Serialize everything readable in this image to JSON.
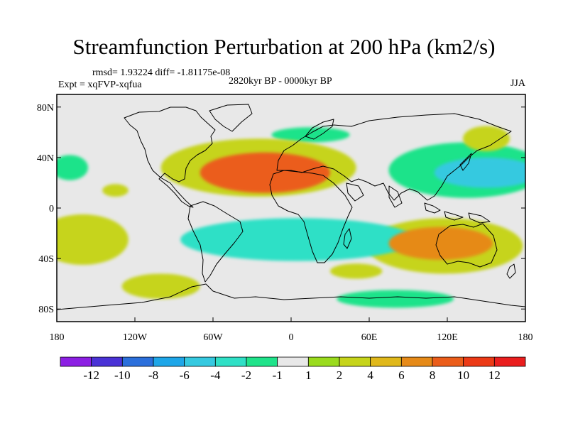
{
  "title": "Streamfunction Perturbation at 200 hPa (km2/s)",
  "stats_line": "rmsd= 1.93224 diff= -1.81175e-08",
  "period_label": "2820kyr BP - 0000kyr BP",
  "experiment_label": "Expt = xqFVP-xqfua",
  "season_label": "JJA",
  "map": {
    "lon_range": [
      -180,
      180
    ],
    "lat_range": [
      -90,
      90
    ],
    "background": "#e8e8e8",
    "lat_ticks": [
      {
        "value": 80,
        "label": "80N"
      },
      {
        "value": 40,
        "label": "40N"
      },
      {
        "value": 0,
        "label": "0"
      },
      {
        "value": -40,
        "label": "40S"
      },
      {
        "value": -80,
        "label": "80S"
      }
    ],
    "lon_ticks": [
      {
        "value": -180,
        "label": "180"
      },
      {
        "value": -120,
        "label": "120W"
      },
      {
        "value": -60,
        "label": "60W"
      },
      {
        "value": 0,
        "label": "0"
      },
      {
        "value": 60,
        "label": "60E"
      },
      {
        "value": 120,
        "label": "120E"
      },
      {
        "value": 180,
        "label": "180"
      }
    ],
    "anomalies": [
      {
        "name": "north-atlantic-high",
        "lon": -20,
        "lat": 28,
        "rx": 50,
        "ry": 16,
        "level": 8
      },
      {
        "name": "north-atlantic-high-outer",
        "lon": -25,
        "lat": 32,
        "rx": 75,
        "ry": 23,
        "level": 3
      },
      {
        "name": "north-pacific-low",
        "lon": 150,
        "lat": 28,
        "rx": 40,
        "ry": 12,
        "level": -5
      },
      {
        "name": "north-pacific-low-outer",
        "lon": 135,
        "lat": 30,
        "rx": 60,
        "ry": 22,
        "level": -2
      },
      {
        "name": "northeast-pacific-high",
        "lon": 150,
        "lat": 55,
        "rx": 18,
        "ry": 10,
        "level": 2
      },
      {
        "name": "east-pacific-low",
        "lon": -170,
        "lat": 32,
        "rx": 14,
        "ry": 10,
        "level": -2
      },
      {
        "name": "south-atlantic-low",
        "lon": 5,
        "lat": -25,
        "rx": 90,
        "ry": 17,
        "level": -4
      },
      {
        "name": "south-atlantic-low-outer",
        "lon": 0,
        "lat": -22,
        "rx": 110,
        "ry": 25,
        "level": -1
      },
      {
        "name": "australia-high",
        "lon": 115,
        "lat": -28,
        "rx": 40,
        "ry": 13,
        "level": 6
      },
      {
        "name": "australia-high-outer",
        "lon": 118,
        "lat": -30,
        "rx": 60,
        "ry": 22,
        "level": 3
      },
      {
        "name": "south-pacific-high",
        "lon": -160,
        "lat": -25,
        "rx": 35,
        "ry": 20,
        "level": 3
      },
      {
        "name": "southern-ocean-high",
        "lon": -100,
        "lat": -62,
        "rx": 30,
        "ry": 10,
        "level": 2
      },
      {
        "name": "indian-ocean-high",
        "lon": 50,
        "lat": -50,
        "rx": 20,
        "ry": 6,
        "level": 2
      },
      {
        "name": "antarctic-low",
        "lon": 80,
        "lat": -72,
        "rx": 45,
        "ry": 7,
        "level": -2
      },
      {
        "name": "arctic-low",
        "lon": 15,
        "lat": 58,
        "rx": 30,
        "ry": 6,
        "level": -2
      },
      {
        "name": "north-pacific-high-small",
        "lon": -135,
        "lat": 14,
        "rx": 10,
        "ry": 5,
        "level": 2
      }
    ]
  },
  "colorbar": {
    "colors": [
      "#8c1fe3",
      "#4a32d6",
      "#2b6fdb",
      "#1ea6e8",
      "#35c9e0",
      "#2fe0c6",
      "#1fe38a",
      "#e8e8e8",
      "#9adb1d",
      "#c6d41a",
      "#e0b81a",
      "#e68a18",
      "#eb5d1a",
      "#ec3a16",
      "#ea1e1e"
    ],
    "labels": [
      "-12",
      "-10",
      "-8",
      "-6",
      "-4",
      "-2",
      "-1",
      "1",
      "2",
      "4",
      "6",
      "8",
      "10",
      "12"
    ],
    "levels": [
      -12,
      -10,
      -8,
      -6,
      -4,
      -2,
      -1,
      1,
      2,
      4,
      6,
      8,
      10,
      12
    ]
  }
}
